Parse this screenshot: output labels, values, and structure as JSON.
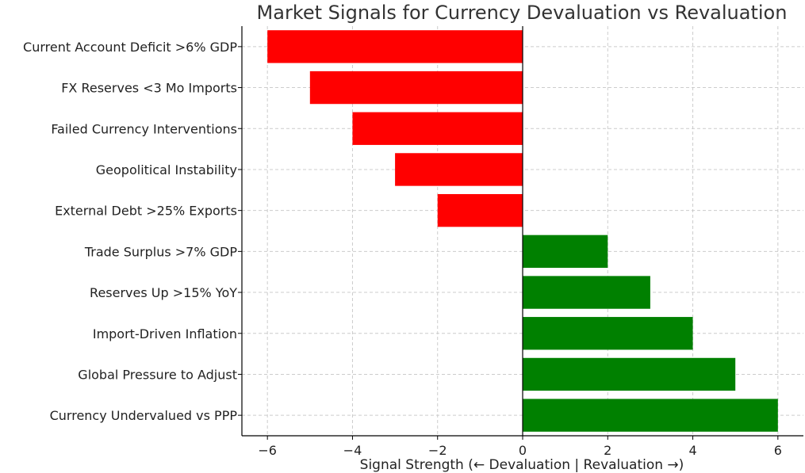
{
  "chart_data": {
    "type": "bar",
    "orientation": "horizontal",
    "title": "Market Signals for Currency Devaluation vs Revaluation",
    "xlabel": "Signal Strength (← Devaluation | Revaluation →)",
    "ylabel": "",
    "categories": [
      "Current Account Deficit >6% GDP",
      "FX Reserves <3 Mo Imports",
      "Failed Currency Interventions",
      "Geopolitical Instability",
      "External Debt >25% Exports",
      "Trade Surplus >7% GDP",
      "Reserves Up >15% YoY",
      "Import-Driven Inflation",
      "Global Pressure to Adjust",
      "Currency Undervalued vs PPP"
    ],
    "values": [
      -6,
      -5,
      -4,
      -3,
      -2,
      2,
      3,
      4,
      5,
      6
    ],
    "xlim": [
      -6.6,
      6.6
    ],
    "xticks": [
      -6,
      -4,
      -2,
      0,
      2,
      4,
      6
    ],
    "xtick_labels": [
      "−6",
      "−4",
      "−2",
      "0",
      "2",
      "4",
      "6"
    ],
    "grid": true,
    "colors": {
      "negative": "#ff0000",
      "positive": "#008000"
    }
  }
}
